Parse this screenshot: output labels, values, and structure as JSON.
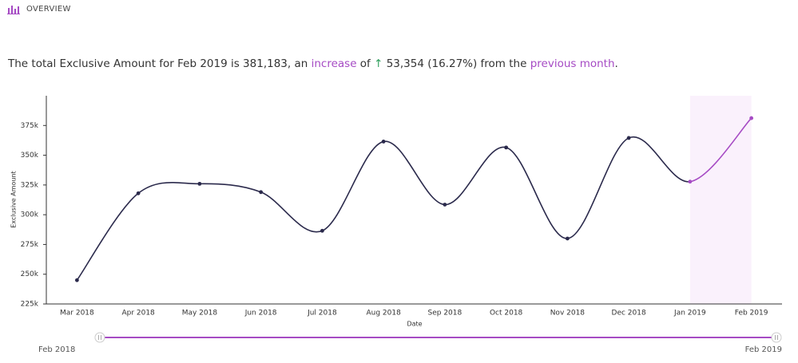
{
  "header": {
    "title": "OVERVIEW"
  },
  "summary": [
    "The total Exclusive Amount for Feb 2019 is 381,183, an ",
    "increase",
    " of ",
    "↑",
    " 53,354 (16.27%) from the ",
    "previous month",
    "."
  ],
  "chart_data": {
    "type": "line",
    "x_label": "Date",
    "y_label": "Exclusive Amount",
    "categories": [
      "Mar 2018",
      "Apr 2018",
      "May 2018",
      "Jun 2018",
      "Jul 2018",
      "Aug 2018",
      "Sep 2018",
      "Oct 2018",
      "Nov 2018",
      "Dec 2018",
      "Jan 2019",
      "Feb 2019"
    ],
    "values": [
      245000,
      318000,
      326000,
      319000,
      286500,
      361500,
      308500,
      356500,
      280000,
      364500,
      327829,
      381183
    ],
    "color": "#2b2a4c",
    "highlight_color": "#a64bc4",
    "ylim": [
      225000,
      400000
    ],
    "yticks": [
      {
        "value": 225000,
        "label": "225k"
      },
      {
        "value": 250000,
        "label": "250k"
      },
      {
        "value": 275000,
        "label": "275k"
      },
      {
        "value": 300000,
        "label": "300k"
      },
      {
        "value": 325000,
        "label": "325k"
      },
      {
        "value": 350000,
        "label": "350k"
      },
      {
        "value": 375000,
        "label": "375k"
      }
    ]
  },
  "slider": {
    "start": "Feb 2018",
    "end": "Feb 2019"
  }
}
